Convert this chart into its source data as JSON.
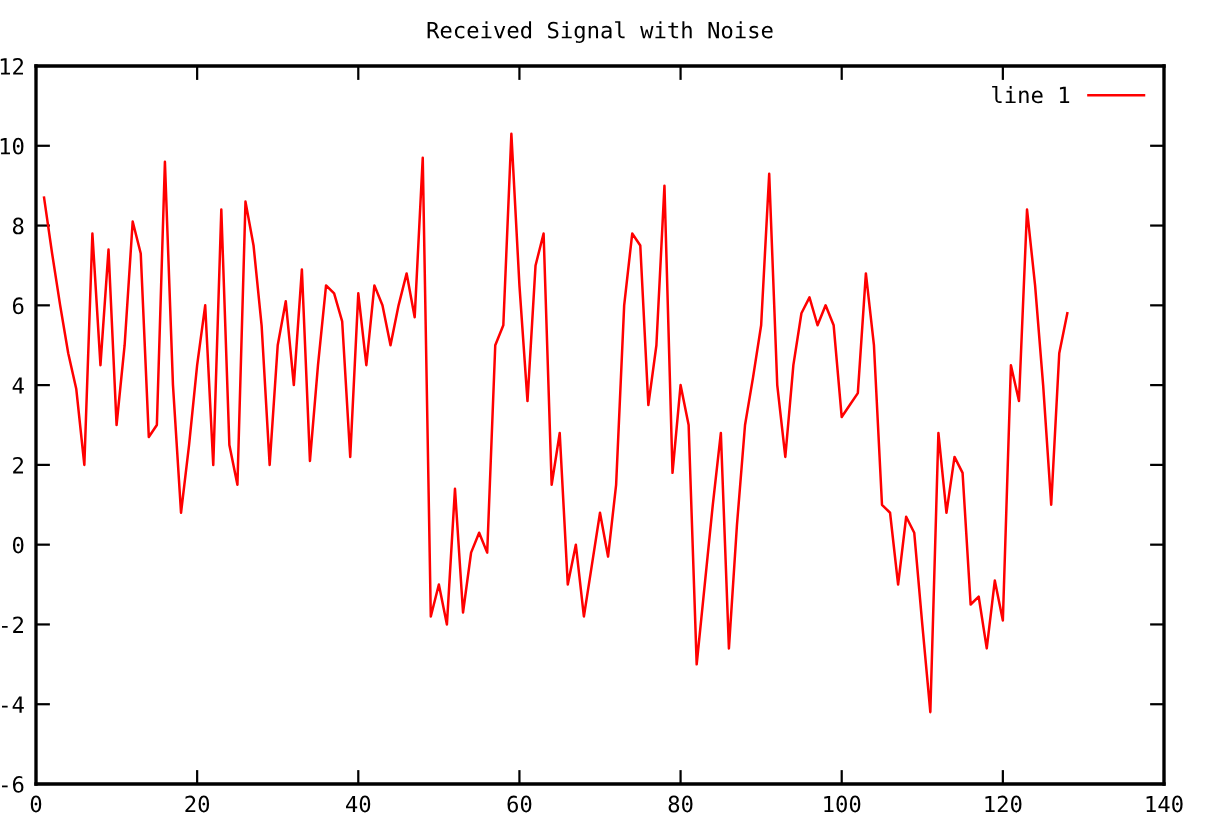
{
  "chart_data": {
    "type": "line",
    "title": "Received Signal with Noise",
    "x": [
      1,
      2,
      3,
      4,
      5,
      6,
      7,
      8,
      9,
      10,
      11,
      12,
      13,
      14,
      15,
      16,
      17,
      18,
      19,
      20,
      21,
      22,
      23,
      24,
      25,
      26,
      27,
      28,
      29,
      30,
      31,
      32,
      33,
      34,
      35,
      36,
      37,
      38,
      39,
      40,
      41,
      42,
      43,
      44,
      45,
      46,
      47,
      48,
      49,
      50,
      51,
      52,
      53,
      54,
      55,
      56,
      57,
      58,
      59,
      60,
      61,
      62,
      63,
      64,
      65,
      66,
      67,
      68,
      69,
      70,
      71,
      72,
      73,
      74,
      75,
      76,
      77,
      78,
      79,
      80,
      81,
      82,
      83,
      84,
      85,
      86,
      87,
      88,
      89,
      90,
      91,
      92,
      93,
      94,
      95,
      96,
      97,
      98,
      99,
      100,
      101,
      102,
      103,
      104,
      105,
      106,
      107,
      108,
      109,
      110,
      111,
      112,
      113,
      114,
      115,
      116,
      117,
      118,
      119,
      120,
      121,
      122,
      123,
      124,
      125,
      126,
      127,
      128
    ],
    "series": [
      {
        "name": "line 1",
        "color": "#ff0000",
        "values": [
          8.7,
          7.3,
          6,
          4.8,
          3.9,
          2.0,
          7.8,
          4.5,
          7.4,
          3.0,
          5.0,
          8.1,
          7.3,
          2.7,
          3.0,
          9.6,
          4.0,
          0.8,
          2.5,
          4.5,
          6.0,
          2.0,
          8.4,
          2.5,
          1.5,
          8.6,
          7.5,
          5.5,
          2.0,
          5.0,
          6.1,
          4.0,
          6.9,
          2.1,
          4.5,
          6.5,
          6.3,
          5.6,
          2.2,
          6.3,
          4.5,
          6.5,
          6.0,
          5.0,
          6.0,
          6.8,
          5.7,
          9.7,
          -1.8,
          -1.0,
          -2.0,
          1.4,
          -1.7,
          -0.2,
          0.3,
          -0.2,
          5.0,
          5.5,
          10.3,
          6.5,
          3.6,
          7.0,
          7.8,
          1.5,
          2.8,
          -1.0,
          0.0,
          -1.8,
          -0.5,
          0.8,
          -0.3,
          1.5,
          6.0,
          7.8,
          7.5,
          3.5,
          5.0,
          9.0,
          1.8,
          4.0,
          3.0,
          -3.0,
          -1.0,
          1.0,
          2.8,
          -2.6,
          0.5,
          3.0,
          4.2,
          5.5,
          9.3,
          4.0,
          2.2,
          4.5,
          5.8,
          6.2,
          5.5,
          6.0,
          5.5,
          3.2,
          3.5,
          3.8,
          6.8,
          5.0,
          1.0,
          0.8,
          -1.0,
          0.7,
          0.3,
          -2.0,
          -4.2,
          2.8,
          0.8,
          2.2,
          1.8,
          -1.5,
          -1.3,
          -2.6,
          -0.9,
          -1.9,
          4.5,
          3.6,
          8.4,
          6.5,
          4.0,
          1.0,
          4.8,
          5.8
        ]
      }
    ],
    "xlim": [
      0,
      140
    ],
    "xticks": [
      0,
      20,
      40,
      60,
      80,
      100,
      120,
      140
    ],
    "ylim": [
      -6,
      12
    ],
    "yticks": [
      -6,
      -4,
      -2,
      0,
      2,
      4,
      6,
      8,
      10,
      12
    ],
    "legend": "top right",
    "marker": "none",
    "line_style": "solid"
  }
}
